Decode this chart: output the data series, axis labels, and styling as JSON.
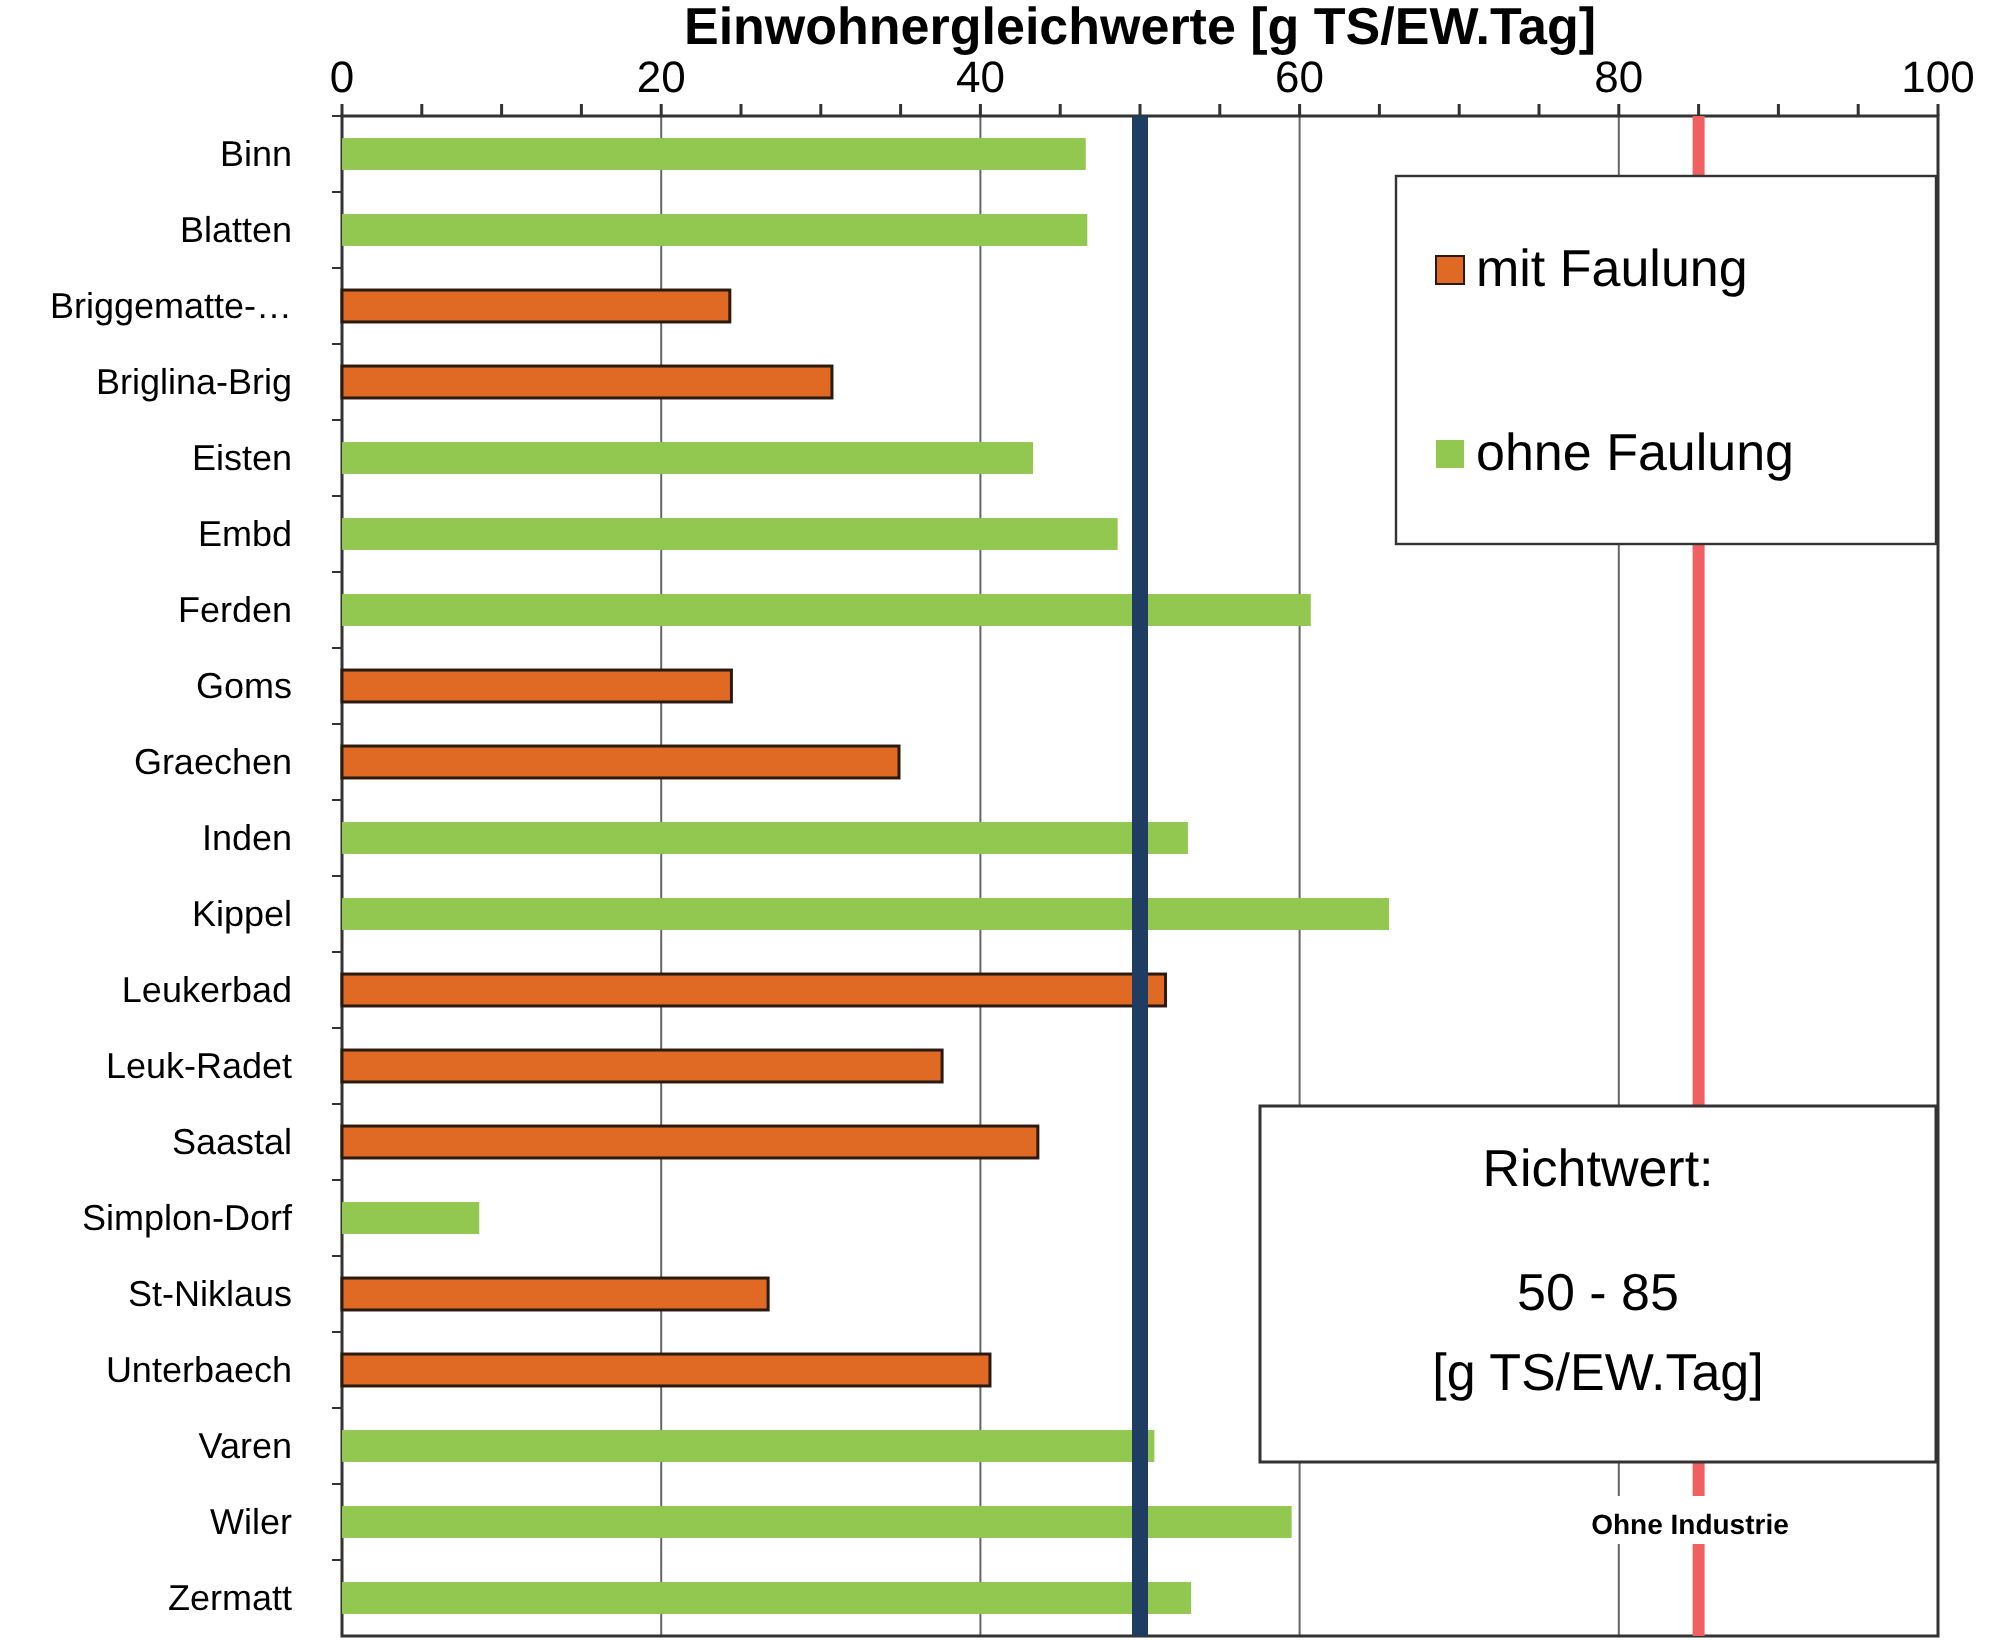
{
  "chart_data": {
    "type": "bar",
    "orientation": "horizontal",
    "title": "Einwohnergleichwerte [g TS/EW.Tag]",
    "categories": [
      "Binn",
      "Blatten",
      "Briggematte-…",
      "Briglina-Brig",
      "Eisten",
      "Embd",
      "Ferden",
      "Goms",
      "Graechen",
      "Inden",
      "Kippel",
      "Leukerbad",
      "Leuk-Radet",
      "Saastal",
      "Simplon-Dorf",
      "St-Niklaus",
      "Unterbaech",
      "Varen",
      "Wiler",
      "Zermatt"
    ],
    "series": [
      {
        "name": "mit Faulung",
        "color": "#e06a24",
        "values": [
          null,
          null,
          24.3,
          30.7,
          null,
          null,
          null,
          24.4,
          34.9,
          null,
          null,
          51.6,
          37.6,
          43.6,
          null,
          26.7,
          40.6,
          null,
          null,
          null
        ]
      },
      {
        "name": "ohne Faulung",
        "color": "#92c84f",
        "values": [
          46.6,
          46.7,
          null,
          null,
          43.3,
          48.6,
          60.7,
          null,
          null,
          53.0,
          65.6,
          null,
          null,
          null,
          8.6,
          null,
          null,
          50.9,
          59.5,
          53.2
        ]
      }
    ],
    "xlim": [
      0,
      100
    ],
    "xticks": [
      0,
      {
        "value": 5,
        "label": null
      },
      {
        "value": 10,
        "label": null
      },
      {
        "value": 15,
        "label": null
      },
      20,
      {
        "value": 25,
        "label": null
      },
      {
        "value": 30,
        "label": null
      },
      {
        "value": 35,
        "label": null
      },
      40,
      {
        "value": 45,
        "label": null
      },
      {
        "value": 50,
        "label": null
      },
      {
        "value": 55,
        "label": null
      },
      60,
      {
        "value": 65,
        "label": null
      },
      {
        "value": 70,
        "label": null
      },
      {
        "value": 75,
        "label": null
      },
      80,
      {
        "value": 85,
        "label": null
      },
      {
        "value": 90,
        "label": null
      },
      {
        "value": 95,
        "label": null
      },
      100
    ],
    "grid": "x",
    "legend": "top right",
    "ref_lines": [
      {
        "axis": "x",
        "value": 50,
        "color": "#1f3d63"
      },
      {
        "axis": "x",
        "value": 85,
        "color": "#f06060"
      }
    ],
    "annotations": [
      "Richtwert:\n50 - 85\n[g TS/EW.Tag]",
      "Ohne Industrie"
    ]
  }
}
